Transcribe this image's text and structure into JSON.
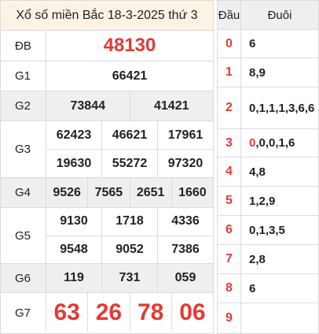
{
  "title": "Xổ số miền Bắc 18-3-2025 thứ 3",
  "prizes": {
    "db": {
      "label": "ĐB",
      "numbers": [
        "48130"
      ]
    },
    "g1": {
      "label": "G1",
      "numbers": [
        "66421"
      ]
    },
    "g2": {
      "label": "G2",
      "numbers": [
        "73844",
        "41421"
      ]
    },
    "g3": {
      "label": "G3",
      "numbers": [
        "62423",
        "46621",
        "17961",
        "19630",
        "55272",
        "97320"
      ]
    },
    "g4": {
      "label": "G4",
      "numbers": [
        "9526",
        "7565",
        "2651",
        "1660"
      ]
    },
    "g5": {
      "label": "G5",
      "numbers": [
        "9130",
        "1718",
        "4336",
        "9548",
        "9052",
        "7386"
      ]
    },
    "g6": {
      "label": "G6",
      "numbers": [
        "119",
        "731",
        "059"
      ]
    },
    "g7": {
      "label": "G7",
      "numbers": [
        "63",
        "26",
        "78",
        "06"
      ]
    }
  },
  "dauduoi": {
    "head_label": "Đầu",
    "tail_label": "Đuôi",
    "rows": [
      {
        "dau": "0",
        "duoi": "6"
      },
      {
        "dau": "1",
        "duoi": "8,9"
      },
      {
        "dau": "2",
        "duoi": "0,1,1,1,3,6,6"
      },
      {
        "dau": "3",
        "duoi_first": "0",
        "duoi_rest": ",0,0,1,6"
      },
      {
        "dau": "4",
        "duoi": "4,8"
      },
      {
        "dau": "5",
        "duoi": "1,2,9"
      },
      {
        "dau": "6",
        "duoi": "0,1,3,5"
      },
      {
        "dau": "7",
        "duoi": "2,8"
      },
      {
        "dau": "8",
        "duoi": "6"
      },
      {
        "dau": "9",
        "duoi": ""
      }
    ]
  },
  "colors": {
    "accent_red": "#e53935",
    "header_bg": "#fdf3e3",
    "alt_row_bg": "#efefef"
  }
}
